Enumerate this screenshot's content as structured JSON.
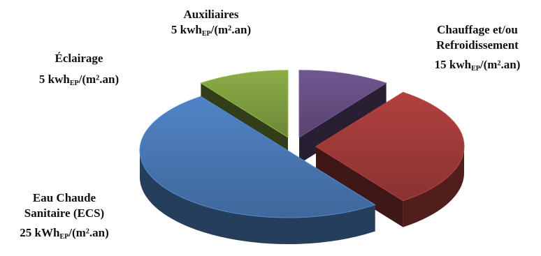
{
  "chart_data": {
    "type": "pie",
    "style": "3d-exploded",
    "title": "",
    "slices": [
      {
        "key": "chauffage",
        "value": 15,
        "color": "#953735",
        "label_lines": [
          "Chauffage et/ou",
          "Refroidissement"
        ],
        "value_text": {
          "num": "15 kwh",
          "sub": "EP",
          "unit": "/(m².an)"
        }
      },
      {
        "key": "ecs",
        "value": 25,
        "color": "#4470A8",
        "label_lines": [
          "Eau Chaude",
          "Sanitaire (ECS)"
        ],
        "value_text": {
          "num": "25 kWh",
          "sub": "EP",
          "unit": "/(m².an)"
        }
      },
      {
        "key": "eclairage",
        "value": 5,
        "color": "#77933C",
        "label_lines": [
          "Éclairage"
        ],
        "value_text": {
          "num": "5 kwh",
          "sub": "EP",
          "unit": "/(m².an)"
        }
      },
      {
        "key": "auxiliaires",
        "value": 5,
        "color": "#60497A",
        "label_lines": [
          "Auxiliaires"
        ],
        "value_text": {
          "num": "5 kwh",
          "sub": "EP",
          "unit": "/(m².an)"
        }
      }
    ]
  }
}
